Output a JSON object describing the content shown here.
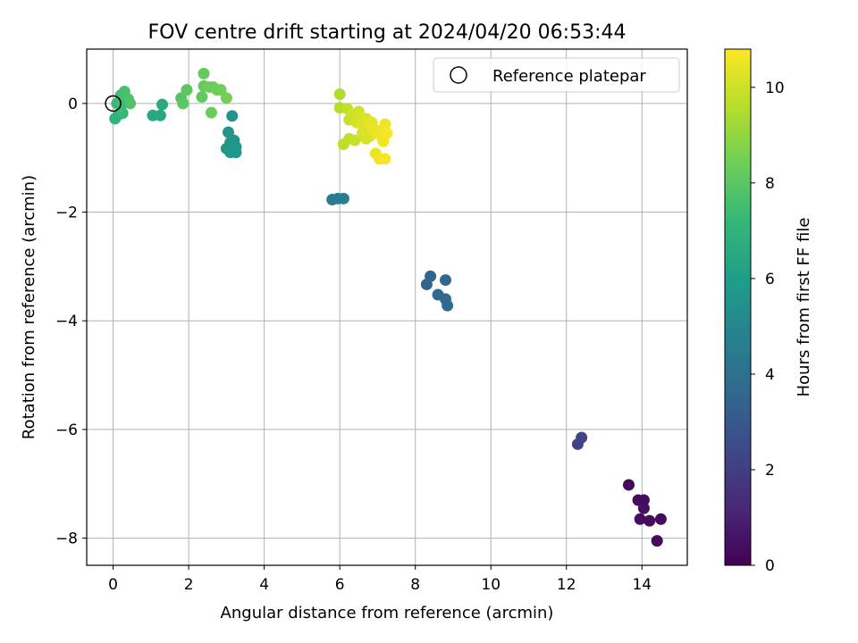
{
  "chart_data": {
    "type": "scatter",
    "title": "FOV centre drift starting at 2024/04/20 06:53:44",
    "xlabel": "Angular distance from reference (arcmin)",
    "ylabel": "Rotation from reference (arcmin)",
    "xlim": [
      -0.7,
      15.2
    ],
    "ylim": [
      -8.5,
      1.0
    ],
    "xticks": [
      0,
      2,
      4,
      6,
      8,
      10,
      12,
      14
    ],
    "yticks": [
      0,
      -2,
      -4,
      -6,
      -8
    ],
    "tick_labels_x": [
      "0",
      "2",
      "4",
      "6",
      "8",
      "10",
      "12",
      "14"
    ],
    "tick_labels_y": [
      "0",
      "−2",
      "−4",
      "−6",
      "−8"
    ],
    "grid": true,
    "legend": {
      "placement": "top-right",
      "entries": [
        "Reference platepar"
      ]
    },
    "reference_point": {
      "x": 0,
      "y": 0,
      "marker": "open-circle",
      "color": "#000000"
    },
    "colorbar": {
      "label": "Hours from first FF file",
      "range": [
        0,
        10.8
      ],
      "ticks": [
        0,
        2,
        4,
        6,
        8,
        10
      ],
      "tick_labels": [
        "0",
        "2",
        "4",
        "6",
        "8",
        "10"
      ],
      "colormap": "viridis",
      "stops": [
        "#440154",
        "#482878",
        "#3e4989",
        "#31688e",
        "#26828e",
        "#1f9e89",
        "#35b779",
        "#6ece58",
        "#b5de2b",
        "#fde725"
      ]
    },
    "points": [
      {
        "x": 13.65,
        "y": -7.02,
        "h": 0.2
      },
      {
        "x": 13.9,
        "y": -7.3,
        "h": 0.3
      },
      {
        "x": 14.05,
        "y": -7.3,
        "h": 0.3
      },
      {
        "x": 14.05,
        "y": -7.45,
        "h": 0.4
      },
      {
        "x": 13.95,
        "y": -7.65,
        "h": 0.4
      },
      {
        "x": 14.2,
        "y": -7.68,
        "h": 0.3
      },
      {
        "x": 14.5,
        "y": -7.65,
        "h": 0.3
      },
      {
        "x": 14.4,
        "y": -8.05,
        "h": 0.3
      },
      {
        "x": 12.3,
        "y": -6.27,
        "h": 2.2
      },
      {
        "x": 12.4,
        "y": -6.15,
        "h": 2.3
      },
      {
        "x": 8.3,
        "y": -3.33,
        "h": 3.5
      },
      {
        "x": 8.4,
        "y": -3.18,
        "h": 3.5
      },
      {
        "x": 8.6,
        "y": -3.52,
        "h": 3.6
      },
      {
        "x": 8.8,
        "y": -3.25,
        "h": 3.6
      },
      {
        "x": 8.8,
        "y": -3.6,
        "h": 3.7
      },
      {
        "x": 8.85,
        "y": -3.72,
        "h": 3.7
      },
      {
        "x": 5.8,
        "y": -1.77,
        "h": 4.5
      },
      {
        "x": 5.95,
        "y": -1.75,
        "h": 4.6
      },
      {
        "x": 6.1,
        "y": -1.75,
        "h": 4.6
      },
      {
        "x": 3.05,
        "y": -0.53,
        "h": 5.6
      },
      {
        "x": 3.15,
        "y": -0.23,
        "h": 5.6
      },
      {
        "x": 3.0,
        "y": -0.83,
        "h": 5.7
      },
      {
        "x": 3.1,
        "y": -0.9,
        "h": 5.7
      },
      {
        "x": 3.2,
        "y": -0.68,
        "h": 5.6
      },
      {
        "x": 3.25,
        "y": -0.8,
        "h": 5.6
      },
      {
        "x": 3.25,
        "y": -0.9,
        "h": 5.7
      },
      {
        "x": 3.1,
        "y": -0.72,
        "h": 5.7
      },
      {
        "x": 1.05,
        "y": -0.22,
        "h": 6.5
      },
      {
        "x": 1.25,
        "y": -0.22,
        "h": 6.5
      },
      {
        "x": 1.3,
        "y": -0.02,
        "h": 6.6
      },
      {
        "x": 0.05,
        "y": -0.28,
        "h": 7.0
      },
      {
        "x": 0.15,
        "y": -0.2,
        "h": 7.0
      },
      {
        "x": 0.25,
        "y": -0.18,
        "h": 7.2
      },
      {
        "x": 0.1,
        "y": 0.0,
        "h": 7.3
      },
      {
        "x": 0.2,
        "y": 0.15,
        "h": 7.5
      },
      {
        "x": 0.3,
        "y": 0.22,
        "h": 7.6
      },
      {
        "x": 0.3,
        "y": 0.05,
        "h": 7.5
      },
      {
        "x": 0.4,
        "y": 0.08,
        "h": 7.7
      },
      {
        "x": 0.45,
        "y": 0.0,
        "h": 7.8
      },
      {
        "x": 0.2,
        "y": -0.05,
        "h": 7.4
      },
      {
        "x": 1.8,
        "y": 0.1,
        "h": 7.9
      },
      {
        "x": 1.85,
        "y": 0.0,
        "h": 8.0
      },
      {
        "x": 1.95,
        "y": 0.25,
        "h": 8.0
      },
      {
        "x": 2.35,
        "y": 0.12,
        "h": 8.1
      },
      {
        "x": 2.4,
        "y": 0.55,
        "h": 8.2
      },
      {
        "x": 2.4,
        "y": 0.32,
        "h": 8.2
      },
      {
        "x": 2.55,
        "y": 0.3,
        "h": 8.3
      },
      {
        "x": 2.65,
        "y": 0.3,
        "h": 8.3
      },
      {
        "x": 2.75,
        "y": 0.25,
        "h": 8.4
      },
      {
        "x": 2.85,
        "y": 0.25,
        "h": 8.4
      },
      {
        "x": 3.0,
        "y": 0.1,
        "h": 8.5
      },
      {
        "x": 2.6,
        "y": -0.17,
        "h": 8.3
      },
      {
        "x": 6.0,
        "y": 0.17,
        "h": 9.5
      },
      {
        "x": 6.0,
        "y": -0.08,
        "h": 9.6
      },
      {
        "x": 6.2,
        "y": -0.1,
        "h": 9.8
      },
      {
        "x": 6.25,
        "y": -0.3,
        "h": 9.9
      },
      {
        "x": 6.35,
        "y": -0.2,
        "h": 10.0
      },
      {
        "x": 6.45,
        "y": -0.35,
        "h": 10.1
      },
      {
        "x": 6.5,
        "y": -0.15,
        "h": 10.0
      },
      {
        "x": 6.55,
        "y": -0.25,
        "h": 10.2
      },
      {
        "x": 6.6,
        "y": -0.4,
        "h": 10.3
      },
      {
        "x": 6.7,
        "y": -0.28,
        "h": 10.3
      },
      {
        "x": 6.75,
        "y": -0.45,
        "h": 10.4
      },
      {
        "x": 6.8,
        "y": -0.6,
        "h": 10.4
      },
      {
        "x": 6.9,
        "y": -0.55,
        "h": 10.5
      },
      {
        "x": 7.0,
        "y": -0.5,
        "h": 10.5
      },
      {
        "x": 7.1,
        "y": -0.6,
        "h": 10.6
      },
      {
        "x": 7.2,
        "y": -0.38,
        "h": 10.6
      },
      {
        "x": 7.25,
        "y": -0.55,
        "h": 10.7
      },
      {
        "x": 6.1,
        "y": -0.75,
        "h": 9.7
      },
      {
        "x": 6.25,
        "y": -0.65,
        "h": 9.8
      },
      {
        "x": 6.4,
        "y": -0.68,
        "h": 9.9
      },
      {
        "x": 6.7,
        "y": -0.65,
        "h": 10.2
      },
      {
        "x": 6.95,
        "y": -0.92,
        "h": 10.5
      },
      {
        "x": 7.05,
        "y": -1.02,
        "h": 10.6
      },
      {
        "x": 7.2,
        "y": -1.02,
        "h": 10.7
      },
      {
        "x": 7.15,
        "y": -0.7,
        "h": 10.6
      },
      {
        "x": 6.85,
        "y": -0.35,
        "h": 10.4
      },
      {
        "x": 6.6,
        "y": -0.55,
        "h": 10.2
      }
    ]
  }
}
